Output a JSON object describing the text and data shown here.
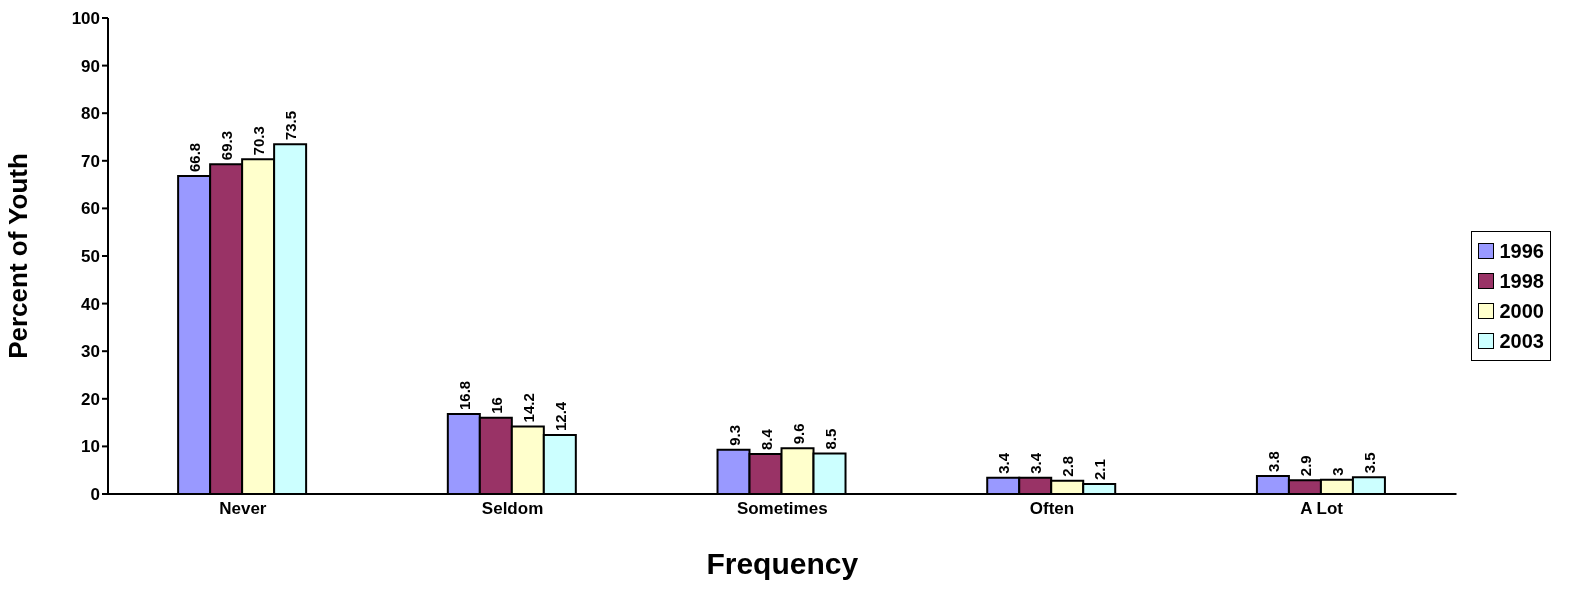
{
  "chart_data": {
    "type": "bar",
    "xlabel": "Frequency",
    "ylabel": "Percent of Youth",
    "categories": [
      "Never",
      "Seldom",
      "Sometimes",
      "Often",
      "A Lot"
    ],
    "series": [
      {
        "name": "1996",
        "color": "#9999ff",
        "values": [
          66.8,
          16.8,
          9.3,
          3.4,
          3.8
        ]
      },
      {
        "name": "1998",
        "color": "#993366",
        "values": [
          69.3,
          16,
          8.4,
          3.4,
          2.9
        ]
      },
      {
        "name": "2000",
        "color": "#ffffcc",
        "values": [
          70.3,
          14.2,
          9.6,
          2.8,
          3
        ]
      },
      {
        "name": "2003",
        "color": "#ccffff",
        "values": [
          73.5,
          12.4,
          8.5,
          2.1,
          3.5
        ]
      }
    ],
    "ylim": [
      0,
      100
    ],
    "yticks": [
      0,
      10,
      20,
      30,
      40,
      50,
      60,
      70,
      80,
      90,
      100
    ],
    "grid": false,
    "legend": "right",
    "data_labels": true
  }
}
